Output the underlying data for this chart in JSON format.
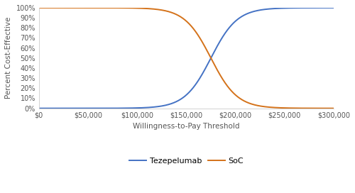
{
  "title": "",
  "xlabel": "Willingness-to-Pay Threshold",
  "ylabel": "Percent Cost-Effective",
  "x_min": 0,
  "x_max": 300000,
  "y_min": 0,
  "y_max": 1.0,
  "tezepelumab_midpoint": 175000,
  "tezepelumab_steepness": 7.5e-05,
  "soc_midpoint": 175000,
  "soc_steepness": 7.5e-05,
  "blue_color": "#4472C4",
  "orange_color": "#D4721A",
  "line_width": 1.4,
  "legend_labels": [
    "Tezepelumab",
    "SoC"
  ],
  "yticks": [
    0,
    0.1,
    0.2,
    0.3,
    0.4,
    0.5,
    0.6,
    0.7,
    0.8,
    0.9,
    1.0
  ],
  "xticks": [
    0,
    50000,
    100000,
    150000,
    200000,
    250000,
    300000
  ],
  "background_color": "#ffffff",
  "figure_width": 5.0,
  "figure_height": 2.72,
  "dpi": 100
}
